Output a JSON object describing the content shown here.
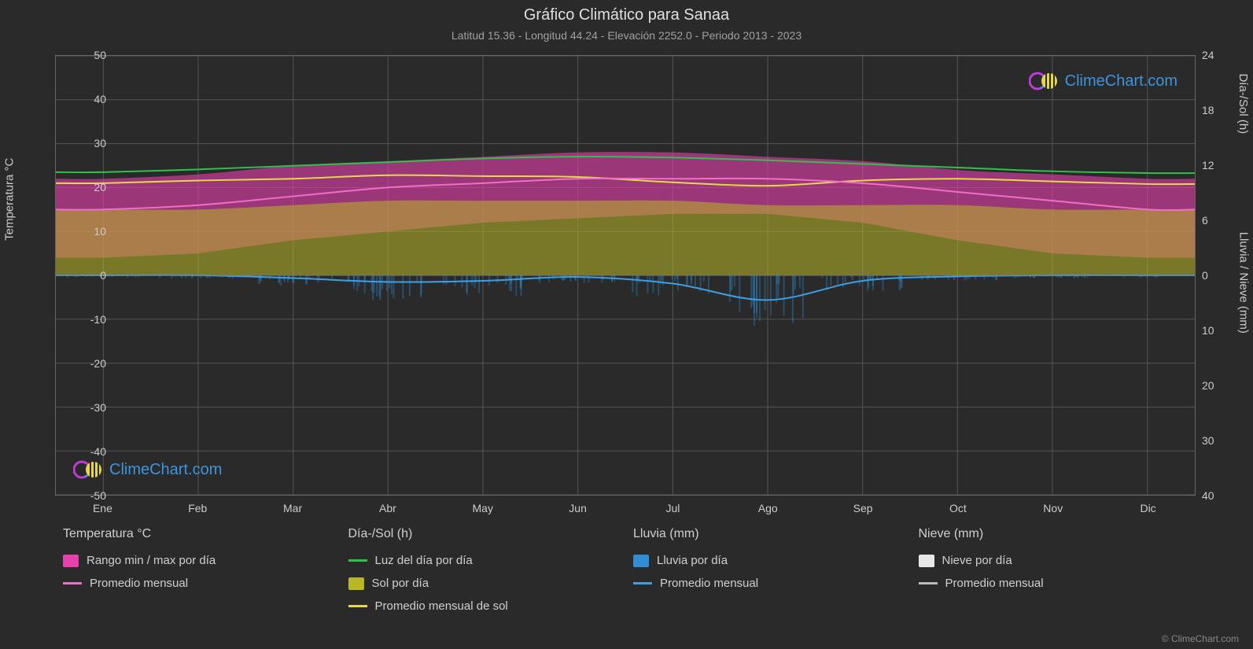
{
  "title": "Gráfico Climático para Sanaa",
  "subtitle": "Latitud 15.36 - Longitud 44.24 - Elevación 2252.0 - Periodo 2013 - 2023",
  "watermark_text": "ClimeChart.com",
  "copyright": "© ClimeChart.com",
  "background_color": "#2a2a2a",
  "grid_color": "#555555",
  "text_color": "#d0d0d0",
  "plot": {
    "left_axis": {
      "title": "Temperatura °C",
      "min": -50,
      "max": 50,
      "step": 10,
      "ticks": [
        -50,
        -40,
        -30,
        -20,
        -10,
        0,
        10,
        20,
        30,
        40,
        50
      ]
    },
    "right_axis_top": {
      "title": "Día-/Sol (h)",
      "min": 0,
      "max": 24,
      "step": 6,
      "ticks": [
        0,
        6,
        12,
        18,
        24
      ]
    },
    "right_axis_bottom": {
      "title": "Lluvia / Nieve (mm)",
      "min": 0,
      "max": 40,
      "step": 10,
      "ticks": [
        0,
        10,
        20,
        30,
        40
      ]
    },
    "x_axis": {
      "months": [
        "Ene",
        "Feb",
        "Mar",
        "Abr",
        "May",
        "Jun",
        "Jul",
        "Ago",
        "Sep",
        "Oct",
        "Nov",
        "Dic"
      ]
    }
  },
  "series": {
    "temp_range": {
      "color": "#e83faf",
      "opacity": 0.6,
      "monthly_high": [
        22,
        23,
        25,
        26,
        27,
        28,
        28,
        27,
        26,
        24,
        23,
        22
      ],
      "monthly_low": [
        4,
        5,
        8,
        10,
        12,
        13,
        14,
        14,
        12,
        8,
        5,
        4
      ],
      "type": "area"
    },
    "temp_avg": {
      "color": "#f06ec6",
      "line_width": 2,
      "values": [
        15,
        16,
        18,
        20,
        21,
        22,
        22,
        22,
        21,
        19,
        17,
        15
      ],
      "type": "line"
    },
    "daylight": {
      "color": "#2ec24c",
      "line_width": 2,
      "values": [
        11.3,
        11.6,
        12.0,
        12.4,
        12.8,
        13.0,
        12.9,
        12.6,
        12.2,
        11.8,
        11.4,
        11.2
      ],
      "type": "line"
    },
    "sun_bars": {
      "color": "#b8b826",
      "opacity": 0.55,
      "monthly_high": [
        15,
        15,
        16,
        17,
        17,
        17,
        17,
        16,
        16,
        16,
        15,
        15
      ],
      "type": "bars_from_zero"
    },
    "sun_avg": {
      "color": "#e6d84a",
      "line_width": 2,
      "values": [
        10.5,
        10.8,
        11.0,
        11.4,
        11.3,
        11.2,
        10.6,
        10.2,
        10.8,
        11.0,
        10.7,
        10.4
      ],
      "type": "line"
    },
    "rain_bars": {
      "color": "#2f8ed6",
      "opacity": 0.5,
      "monthly_values": [
        0.2,
        0.3,
        1.0,
        2.5,
        2.0,
        0.8,
        2.0,
        5.0,
        1.5,
        0.5,
        0.3,
        0.2
      ],
      "type": "bars_down"
    },
    "rain_avg": {
      "color": "#3ba0e6",
      "line_width": 2,
      "values": [
        0,
        0,
        0.5,
        1.2,
        1.0,
        0.3,
        1.5,
        4.5,
        1.0,
        0.2,
        0,
        0
      ],
      "type": "line_down"
    },
    "snow_bars": {
      "color": "#e8e8e8",
      "opacity": 0.7,
      "monthly_values": [
        0,
        0,
        0,
        0,
        0,
        0,
        0,
        0,
        0,
        0,
        0,
        0
      ],
      "type": "bars_down"
    },
    "snow_avg": {
      "color": "#bbbbbb",
      "line_width": 2,
      "values": [
        0,
        0,
        0,
        0,
        0,
        0,
        0,
        0,
        0,
        0,
        0,
        0
      ],
      "type": "line_down"
    }
  },
  "legend": {
    "columns": [
      {
        "header": "Temperatura °C",
        "items": [
          {
            "swatch": "#e83faf",
            "shape": "box",
            "label": "Rango min / max por día"
          },
          {
            "swatch": "#f06ec6",
            "shape": "line",
            "label": "Promedio mensual"
          }
        ]
      },
      {
        "header": "Día-/Sol (h)",
        "items": [
          {
            "swatch": "#2ec24c",
            "shape": "line",
            "label": "Luz del día por día"
          },
          {
            "swatch": "#b8b826",
            "shape": "box",
            "label": "Sol por día"
          },
          {
            "swatch": "#e6d84a",
            "shape": "line",
            "label": "Promedio mensual de sol"
          }
        ]
      },
      {
        "header": "Lluvia (mm)",
        "items": [
          {
            "swatch": "#2f8ed6",
            "shape": "box",
            "label": "Lluvia por día"
          },
          {
            "swatch": "#3ba0e6",
            "shape": "line",
            "label": "Promedio mensual"
          }
        ]
      },
      {
        "header": "Nieve (mm)",
        "items": [
          {
            "swatch": "#e8e8e8",
            "shape": "box",
            "label": "Nieve por día"
          },
          {
            "swatch": "#bbbbbb",
            "shape": "line",
            "label": "Promedio mensual"
          }
        ]
      }
    ]
  }
}
